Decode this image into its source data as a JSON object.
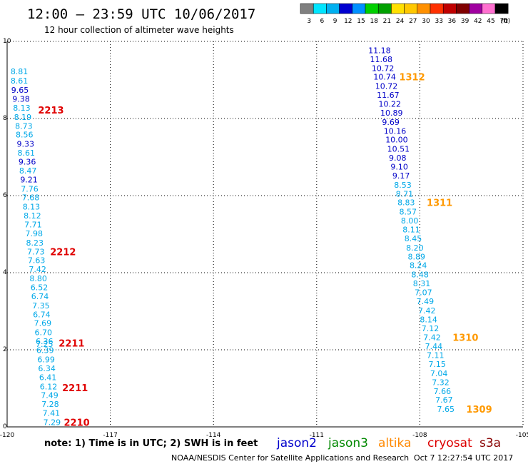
{
  "header": {
    "title": "12:00 – 23:59 UTC 10/06/2017",
    "subtitle": "12 hour collection of altimeter wave heights"
  },
  "legend_scale": {
    "ticks": [
      "3",
      "6",
      "9",
      "12",
      "15",
      "18",
      "21",
      "24",
      "27",
      "30",
      "33",
      "36",
      "39",
      "42",
      "45",
      "70"
    ],
    "unit": "(ft)",
    "colors": [
      "#7f7f7f",
      "#00e5ff",
      "#00b0f0",
      "#0000d0",
      "#0090ff",
      "#00d000",
      "#00a000",
      "#ffe000",
      "#ffc800",
      "#ff9000",
      "#ff3000",
      "#c00000",
      "#800000",
      "#a000a0",
      "#ff70d0",
      "#000000"
    ]
  },
  "footer": {
    "note": "note: 1) Time is in UTC; 2) SWH is in feet",
    "satellites": [
      {
        "name": "jason2",
        "color": "#0000cc"
      },
      {
        "name": "jason3",
        "color": "#008800"
      },
      {
        "name": "altika",
        "color": "#ff8800"
      },
      {
        "name": "cryosat",
        "color": "#dd0000"
      },
      {
        "name": "s3a",
        "color": "#880000"
      }
    ],
    "credit": "NOAA/NESDIS Center for Satellite Applications and Research",
    "timestamp": "Oct  7 12:27:54 UTC 2017"
  },
  "chart_data": {
    "type": "scatter",
    "x_range": [
      -120,
      -105
    ],
    "y_range": [
      0,
      10
    ],
    "x_ticks": [
      "-120",
      "-117",
      "-114",
      "-111",
      "-108",
      "-105"
    ],
    "y_ticks": [
      "0",
      "2",
      "4",
      "6",
      "8",
      "10"
    ],
    "grid": "dotted",
    "colors": {
      "cyan": "#00a8e8",
      "blue": "#0000c8",
      "red": "#e00000",
      "orange": "#ff9900"
    },
    "series": [
      {
        "satellite": "cryosat",
        "track": [
          {
            "x": -119.9,
            "y": 9.22,
            "v": "8.81",
            "c": "cyan"
          },
          {
            "x": -119.9,
            "y": 8.98,
            "v": "8.61",
            "c": "cyan"
          },
          {
            "x": -119.88,
            "y": 8.74,
            "v": "9.65",
            "c": "blue"
          },
          {
            "x": -119.85,
            "y": 8.51,
            "v": "9.38",
            "c": "blue"
          },
          {
            "x": -119.83,
            "y": 8.28,
            "v": "8.13",
            "c": "cyan"
          },
          {
            "x": -119.8,
            "y": 8.04,
            "v": "8.19",
            "c": "cyan"
          },
          {
            "x": -119.77,
            "y": 7.81,
            "v": "8.73",
            "c": "cyan"
          },
          {
            "x": -119.75,
            "y": 7.58,
            "v": "8.56",
            "c": "cyan"
          },
          {
            "x": -119.72,
            "y": 7.34,
            "v": "9.33",
            "c": "blue"
          },
          {
            "x": -119.7,
            "y": 7.11,
            "v": "8.61",
            "c": "cyan"
          },
          {
            "x": -119.67,
            "y": 6.88,
            "v": "9.36",
            "c": "blue"
          },
          {
            "x": -119.65,
            "y": 6.65,
            "v": "8.47",
            "c": "cyan"
          },
          {
            "x": -119.62,
            "y": 6.42,
            "v": "9.21",
            "c": "blue"
          },
          {
            "x": -119.6,
            "y": 6.18,
            "v": "7.76",
            "c": "cyan"
          },
          {
            "x": -119.57,
            "y": 5.95,
            "v": "7.68",
            "c": "cyan"
          },
          {
            "x": -119.55,
            "y": 5.71,
            "v": "8.13",
            "c": "cyan"
          },
          {
            "x": -119.52,
            "y": 5.48,
            "v": "8.12",
            "c": "cyan"
          },
          {
            "x": -119.5,
            "y": 5.25,
            "v": "7.71",
            "c": "cyan"
          },
          {
            "x": -119.47,
            "y": 5.02,
            "v": "7.98",
            "c": "cyan"
          },
          {
            "x": -119.45,
            "y": 4.78,
            "v": "8.23",
            "c": "cyan"
          },
          {
            "x": -119.42,
            "y": 4.55,
            "v": "7.73",
            "c": "cyan"
          },
          {
            "x": -119.4,
            "y": 4.32,
            "v": "7.63",
            "c": "cyan"
          },
          {
            "x": -119.37,
            "y": 4.09,
            "v": "7.42",
            "c": "cyan"
          },
          {
            "x": -119.35,
            "y": 3.85,
            "v": "8.80",
            "c": "cyan"
          },
          {
            "x": -119.32,
            "y": 3.62,
            "v": "6.52",
            "c": "cyan"
          },
          {
            "x": -119.3,
            "y": 3.39,
            "v": "6.74",
            "c": "cyan"
          },
          {
            "x": -119.27,
            "y": 3.15,
            "v": "7.35",
            "c": "cyan"
          },
          {
            "x": -119.25,
            "y": 2.92,
            "v": "6.74",
            "c": "cyan"
          },
          {
            "x": -119.22,
            "y": 2.69,
            "v": "7.69",
            "c": "cyan"
          },
          {
            "x": -119.2,
            "y": 2.45,
            "v": "6.70",
            "c": "cyan"
          },
          {
            "x": -119.17,
            "y": 2.22,
            "v": "6.36",
            "c": "cyan"
          },
          {
            "x": -119.17,
            "y": 2.15,
            "v": "7.25",
            "c": "cyan"
          },
          {
            "x": -119.15,
            "y": 1.99,
            "v": "6.39",
            "c": "cyan"
          },
          {
            "x": -119.12,
            "y": 1.75,
            "v": "6.99",
            "c": "cyan"
          },
          {
            "x": -119.1,
            "y": 1.52,
            "v": "6.34",
            "c": "cyan"
          },
          {
            "x": -119.07,
            "y": 1.29,
            "v": "6.41",
            "c": "cyan"
          },
          {
            "x": -119.05,
            "y": 1.05,
            "v": "6.12",
            "c": "cyan"
          },
          {
            "x": -119.02,
            "y": 0.82,
            "v": "7.49",
            "c": "cyan"
          },
          {
            "x": -119.0,
            "y": 0.59,
            "v": "7.28",
            "c": "cyan"
          },
          {
            "x": -118.97,
            "y": 0.36,
            "v": "7.41",
            "c": "cyan"
          },
          {
            "x": -118.95,
            "y": 0.12,
            "v": "7.29",
            "c": "cyan"
          }
        ],
        "orbit_labels": [
          {
            "x": -119.1,
            "y": 8.22,
            "text": "2213"
          },
          {
            "x": -118.75,
            "y": 4.55,
            "text": "2212"
          },
          {
            "x": -118.5,
            "y": 2.18,
            "text": "2211"
          },
          {
            "x": -118.4,
            "y": 1.02,
            "text": "2211"
          },
          {
            "x": -118.35,
            "y": 0.12,
            "text": "2210"
          }
        ]
      },
      {
        "satellite": "altika",
        "track": [
          {
            "x": -109.5,
            "y": 9.77,
            "v": "11.18",
            "c": "blue"
          },
          {
            "x": -109.45,
            "y": 9.54,
            "v": "11.68",
            "c": "blue"
          },
          {
            "x": -109.4,
            "y": 9.31,
            "v": "10.72",
            "c": "blue"
          },
          {
            "x": -109.35,
            "y": 9.08,
            "v": "10.74",
            "c": "blue"
          },
          {
            "x": -109.3,
            "y": 8.84,
            "v": "10.72",
            "c": "blue"
          },
          {
            "x": -109.25,
            "y": 8.61,
            "v": "11.67",
            "c": "blue"
          },
          {
            "x": -109.2,
            "y": 8.38,
            "v": "10.22",
            "c": "blue"
          },
          {
            "x": -109.15,
            "y": 8.15,
            "v": "10.89",
            "c": "blue"
          },
          {
            "x": -109.1,
            "y": 7.91,
            "v": "9.69",
            "c": "blue"
          },
          {
            "x": -109.05,
            "y": 7.68,
            "v": "10.16",
            "c": "blue"
          },
          {
            "x": -109.0,
            "y": 7.45,
            "v": "10.00",
            "c": "blue"
          },
          {
            "x": -108.95,
            "y": 7.21,
            "v": "10.51",
            "c": "blue"
          },
          {
            "x": -108.9,
            "y": 6.98,
            "v": "9.08",
            "c": "blue"
          },
          {
            "x": -108.85,
            "y": 6.75,
            "v": "9.10",
            "c": "blue"
          },
          {
            "x": -108.8,
            "y": 6.52,
            "v": "9.17",
            "c": "blue"
          },
          {
            "x": -108.75,
            "y": 6.28,
            "v": "8.53",
            "c": "cyan"
          },
          {
            "x": -108.7,
            "y": 6.05,
            "v": "8.71",
            "c": "cyan"
          },
          {
            "x": -108.65,
            "y": 5.82,
            "v": "8.83",
            "c": "cyan"
          },
          {
            "x": -108.6,
            "y": 5.58,
            "v": "8.57",
            "c": "cyan"
          },
          {
            "x": -108.55,
            "y": 5.35,
            "v": "8.00",
            "c": "cyan"
          },
          {
            "x": -108.5,
            "y": 5.12,
            "v": "8.11",
            "c": "cyan"
          },
          {
            "x": -108.45,
            "y": 4.89,
            "v": "8.45",
            "c": "cyan"
          },
          {
            "x": -108.4,
            "y": 4.65,
            "v": "8.20",
            "c": "cyan"
          },
          {
            "x": -108.35,
            "y": 4.42,
            "v": "8.89",
            "c": "cyan"
          },
          {
            "x": -108.3,
            "y": 4.19,
            "v": "8.24",
            "c": "cyan"
          },
          {
            "x": -108.25,
            "y": 3.95,
            "v": "8.48",
            "c": "cyan"
          },
          {
            "x": -108.2,
            "y": 3.72,
            "v": "8.31",
            "c": "cyan"
          },
          {
            "x": -108.15,
            "y": 3.49,
            "v": "7.07",
            "c": "cyan"
          },
          {
            "x": -108.1,
            "y": 3.26,
            "v": "7.49",
            "c": "cyan"
          },
          {
            "x": -108.05,
            "y": 3.02,
            "v": "7.42",
            "c": "cyan"
          },
          {
            "x": -108.0,
            "y": 2.79,
            "v": "8.14",
            "c": "cyan"
          },
          {
            "x": -107.95,
            "y": 2.56,
            "v": "7.12",
            "c": "cyan"
          },
          {
            "x": -107.9,
            "y": 2.32,
            "v": "7.42",
            "c": "cyan"
          },
          {
            "x": -107.85,
            "y": 2.09,
            "v": "7.44",
            "c": "cyan"
          },
          {
            "x": -107.8,
            "y": 1.86,
            "v": "7.11",
            "c": "cyan"
          },
          {
            "x": -107.75,
            "y": 1.63,
            "v": "7.15",
            "c": "cyan"
          },
          {
            "x": -107.7,
            "y": 1.39,
            "v": "7.04",
            "c": "cyan"
          },
          {
            "x": -107.65,
            "y": 1.16,
            "v": "7.32",
            "c": "cyan"
          },
          {
            "x": -107.6,
            "y": 0.93,
            "v": "7.66",
            "c": "cyan"
          },
          {
            "x": -107.55,
            "y": 0.7,
            "v": "7.67",
            "c": "cyan"
          },
          {
            "x": -107.5,
            "y": 0.46,
            "v": "7.65",
            "c": "cyan"
          }
        ],
        "orbit_labels": [
          {
            "x": -108.6,
            "y": 9.08,
            "text": "1312"
          },
          {
            "x": -107.8,
            "y": 5.82,
            "text": "1311"
          },
          {
            "x": -107.05,
            "y": 2.32,
            "text": "1310"
          },
          {
            "x": -106.65,
            "y": 0.46,
            "text": "1309"
          }
        ]
      }
    ]
  }
}
